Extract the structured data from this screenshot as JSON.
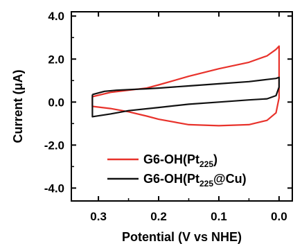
{
  "chart_data": {
    "type": "line",
    "xlabel": "Potential (V vs NHE)",
    "ylabel": "Current (μA)",
    "x_reversed": true,
    "xlim": [
      -0.022,
      0.345
    ],
    "ylim": [
      -4.6,
      4.2
    ],
    "x_ticks": [
      0.3,
      0.2,
      0.1,
      0.0
    ],
    "x_tick_labels": [
      "0.3",
      "0.2",
      "0.1",
      "0.0"
    ],
    "y_ticks": [
      4.0,
      2.0,
      0.0,
      -2.0,
      -4.0
    ],
    "y_tick_labels": [
      "4.0",
      "2.0",
      "0.0",
      "-2.0",
      "-4.0"
    ],
    "legend_position": "bottom-left",
    "series": [
      {
        "name": "G6-OH(Pt225)",
        "name_main": "G6-OH(Pt",
        "name_sub": "225",
        "name_tail": ")",
        "color": "#e8322b",
        "x": [
          0.31,
          0.28,
          0.25,
          0.22,
          0.2,
          0.15,
          0.1,
          0.05,
          0.02,
          0.005,
          0.0,
          0.0,
          0.0,
          0.005,
          0.02,
          0.05,
          0.1,
          0.15,
          0.2,
          0.22,
          0.25,
          0.28,
          0.31
        ],
        "y": [
          0.25,
          0.45,
          0.55,
          0.65,
          0.8,
          1.2,
          1.55,
          1.85,
          2.15,
          2.45,
          2.6,
          1.0,
          0.2,
          -0.5,
          -0.85,
          -1.05,
          -1.1,
          -1.05,
          -0.8,
          -0.65,
          -0.45,
          -0.3,
          -0.2
        ]
      },
      {
        "name": "G6-OH(Pt225@Cu)",
        "name_main": "G6-OH(Pt",
        "name_sub": "225",
        "name_tail": "@Cu)",
        "color": "#111111",
        "x": [
          0.31,
          0.29,
          0.27,
          0.25,
          0.22,
          0.2,
          0.15,
          0.1,
          0.05,
          0.02,
          0.005,
          0.0,
          0.0,
          0.0,
          0.005,
          0.02,
          0.05,
          0.1,
          0.15,
          0.2,
          0.25,
          0.28,
          0.31
        ],
        "y": [
          0.35,
          0.5,
          0.55,
          0.58,
          0.62,
          0.65,
          0.75,
          0.85,
          0.95,
          1.05,
          1.1,
          1.15,
          0.9,
          0.7,
          0.3,
          0.15,
          0.1,
          0.0,
          -0.1,
          -0.25,
          -0.4,
          -0.55,
          -0.68
        ]
      }
    ]
  }
}
